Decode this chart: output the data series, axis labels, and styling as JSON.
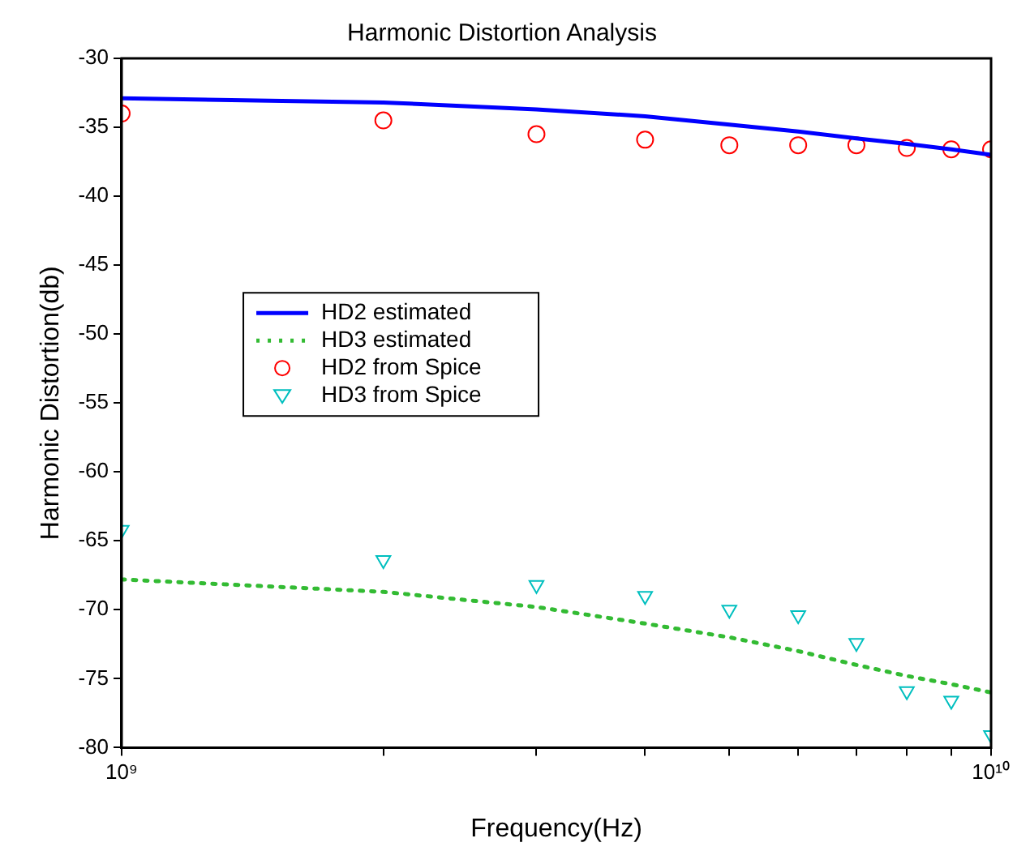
{
  "chart_data": {
    "type": "line",
    "title": "Harmonic Distortion Analysis",
    "xlabel": "Frequency(Hz)",
    "ylabel": "Harmonic Distortion(db)",
    "x": [
      1000000000.0,
      2000000000.0,
      3000000000.0,
      4000000000.0,
      5000000000.0,
      6000000000.0,
      7000000000.0,
      8000000000.0,
      9000000000.0,
      10000000000.0
    ],
    "series": [
      {
        "name": "HD2 estimated",
        "type": "line",
        "color": "#0000ff",
        "line_style": "solid",
        "marker": "none",
        "values": [
          -32.9,
          -33.2,
          -33.7,
          -34.2,
          -34.8,
          -35.3,
          -35.8,
          -36.2,
          -36.6,
          -37.0
        ]
      },
      {
        "name": "HD3 estimated",
        "type": "line",
        "color": "#33bb33",
        "line_style": "dotted",
        "marker": "none",
        "values": [
          -67.8,
          -68.7,
          -69.8,
          -71.0,
          -72.0,
          -73.0,
          -74.0,
          -74.8,
          -75.4,
          -76.0
        ]
      },
      {
        "name": "HD2 from Spice",
        "type": "scatter",
        "color": "#ff0000",
        "marker": "circle",
        "values": [
          -34.0,
          -34.5,
          -35.5,
          -35.9,
          -36.3,
          -36.3,
          -36.3,
          -36.5,
          -36.6,
          -36.6
        ]
      },
      {
        "name": "HD3 from Spice",
        "type": "scatter",
        "color": "#00bfbf",
        "marker": "triangle",
        "values": [
          -64.2,
          -66.4,
          -68.2,
          -69.0,
          -70.0,
          -70.4,
          -72.4,
          -75.9,
          -76.6,
          -79.1
        ]
      }
    ],
    "log": "x",
    "xlim": [
      1000000000.0,
      10000000000.0
    ],
    "xticks": [
      {
        "value": 1000000000.0,
        "label": "10⁹"
      },
      {
        "value": 2000000000.0,
        "label": null
      },
      {
        "value": 3000000000.0,
        "label": null
      },
      {
        "value": 4000000000.0,
        "label": null
      },
      {
        "value": 5000000000.0,
        "label": null
      },
      {
        "value": 6000000000.0,
        "label": null
      },
      {
        "value": 7000000000.0,
        "label": null
      },
      {
        "value": 8000000000.0,
        "label": null
      },
      {
        "value": 9000000000.0,
        "label": null
      },
      {
        "value": 10000000000.0,
        "label": "10¹⁰"
      }
    ],
    "ylim": [
      -80,
      -30
    ],
    "yticks": [
      -80,
      -75,
      -70,
      -65,
      -60,
      -55,
      -50,
      -45,
      -40,
      -35,
      -30
    ],
    "grid": false,
    "legend": "left"
  }
}
